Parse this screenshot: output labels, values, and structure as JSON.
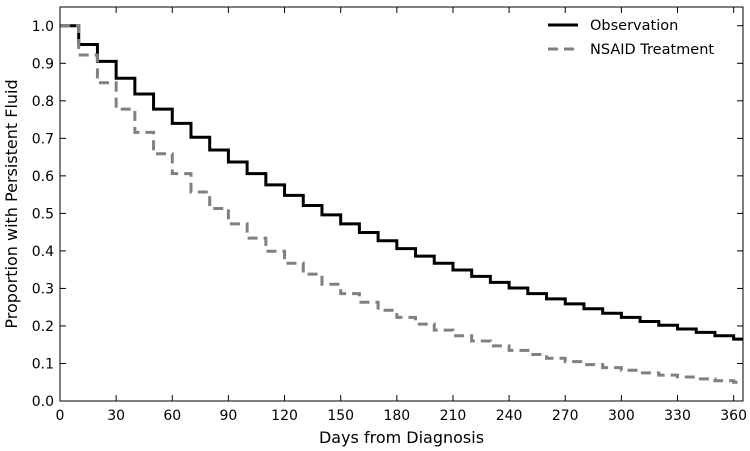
{
  "chart_data": {
    "type": "line",
    "title": "",
    "xlabel": "Days from Diagnosis",
    "ylabel": "Proportion with Persistent Fluid",
    "xlim": [
      0,
      365
    ],
    "ylim": [
      0.0,
      1.05
    ],
    "step": true,
    "grid": false,
    "legend_position": "top-right",
    "x_ticks": [
      0,
      30,
      60,
      90,
      120,
      150,
      180,
      210,
      240,
      270,
      300,
      330,
      360
    ],
    "y_ticks": [
      "0.0",
      "0.1",
      "0.2",
      "0.3",
      "0.4",
      "0.5",
      "0.6",
      "0.7",
      "0.8",
      "0.9",
      "1.0"
    ],
    "x": [
      0,
      10,
      20,
      30,
      40,
      50,
      60,
      70,
      80,
      90,
      100,
      110,
      120,
      130,
      140,
      150,
      160,
      170,
      180,
      190,
      200,
      210,
      220,
      230,
      240,
      250,
      260,
      270,
      280,
      290,
      300,
      310,
      320,
      330,
      340,
      350,
      360
    ],
    "series": [
      {
        "name": "Observation",
        "color": "#000000",
        "style": "solid",
        "values": [
          1.0,
          0.95,
          0.905,
          0.86,
          0.818,
          0.778,
          0.74,
          0.703,
          0.669,
          0.637,
          0.606,
          0.576,
          0.548,
          0.521,
          0.496,
          0.472,
          0.449,
          0.427,
          0.406,
          0.386,
          0.367,
          0.349,
          0.332,
          0.316,
          0.301,
          0.286,
          0.272,
          0.259,
          0.246,
          0.234,
          0.223,
          0.212,
          0.202,
          0.192,
          0.183,
          0.174,
          0.165
        ]
      },
      {
        "name": "NSAID Treatment",
        "color": "#808080",
        "style": "dashed",
        "values": [
          1.0,
          0.922,
          0.848,
          0.778,
          0.716,
          0.659,
          0.606,
          0.557,
          0.513,
          0.472,
          0.434,
          0.399,
          0.367,
          0.338,
          0.311,
          0.286,
          0.263,
          0.242,
          0.223,
          0.205,
          0.189,
          0.174,
          0.16,
          0.147,
          0.135,
          0.124,
          0.114,
          0.105,
          0.097,
          0.089,
          0.082,
          0.075,
          0.069,
          0.064,
          0.059,
          0.054,
          0.05
        ]
      }
    ]
  }
}
